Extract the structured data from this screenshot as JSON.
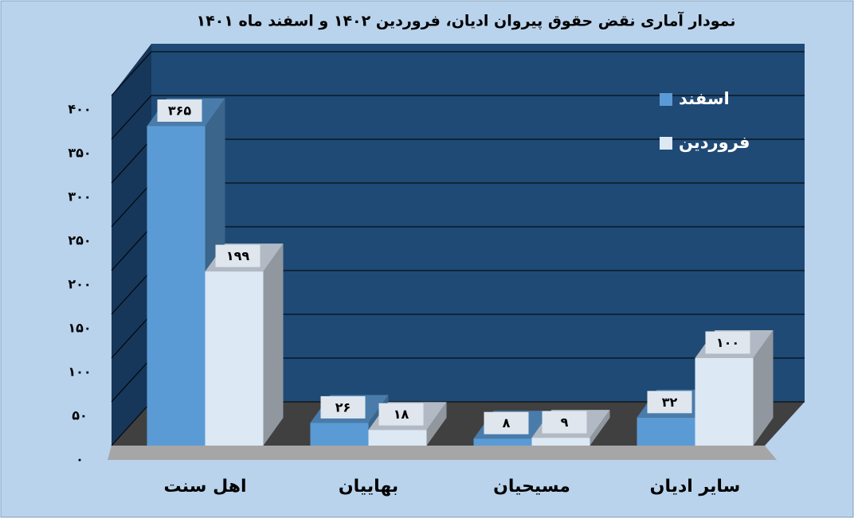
{
  "chart_data": {
    "type": "bar3d",
    "title": "نمودار آماری نقض حقوق پیروان ادیان، فروردین ۱۴۰۲ و اسفند ماه ۱۴۰۱",
    "categories": [
      "اهل سنت",
      "بهاییان",
      "مسیحیان",
      "سایر ادیان"
    ],
    "series": [
      {
        "name": "اسفند",
        "color": "#5b9bd5",
        "values": [
          365,
          26,
          8,
          32
        ],
        "value_labels": [
          "۳۶۵",
          "۲۶",
          "۸",
          "۳۲"
        ]
      },
      {
        "name": "فروردین",
        "color": "#dde8f5",
        "values": [
          199,
          18,
          9,
          100
        ],
        "value_labels": [
          "۱۹۹",
          "۱۸",
          "۹",
          "۱۰۰"
        ]
      }
    ],
    "ylim": [
      0,
      400
    ],
    "yticks": [
      {
        "value": 0,
        "label": "۰"
      },
      {
        "value": 50,
        "label": "۵۰"
      },
      {
        "value": 100,
        "label": "۱۰۰"
      },
      {
        "value": 150,
        "label": "۱۵۰"
      },
      {
        "value": 200,
        "label": "۲۰۰"
      },
      {
        "value": 250,
        "label": "۲۵۰"
      },
      {
        "value": 300,
        "label": "۳۰۰"
      },
      {
        "value": 350,
        "label": "۳۵۰"
      },
      {
        "value": 400,
        "label": "۴۰۰"
      }
    ],
    "grid": true,
    "legend": "top-right"
  }
}
